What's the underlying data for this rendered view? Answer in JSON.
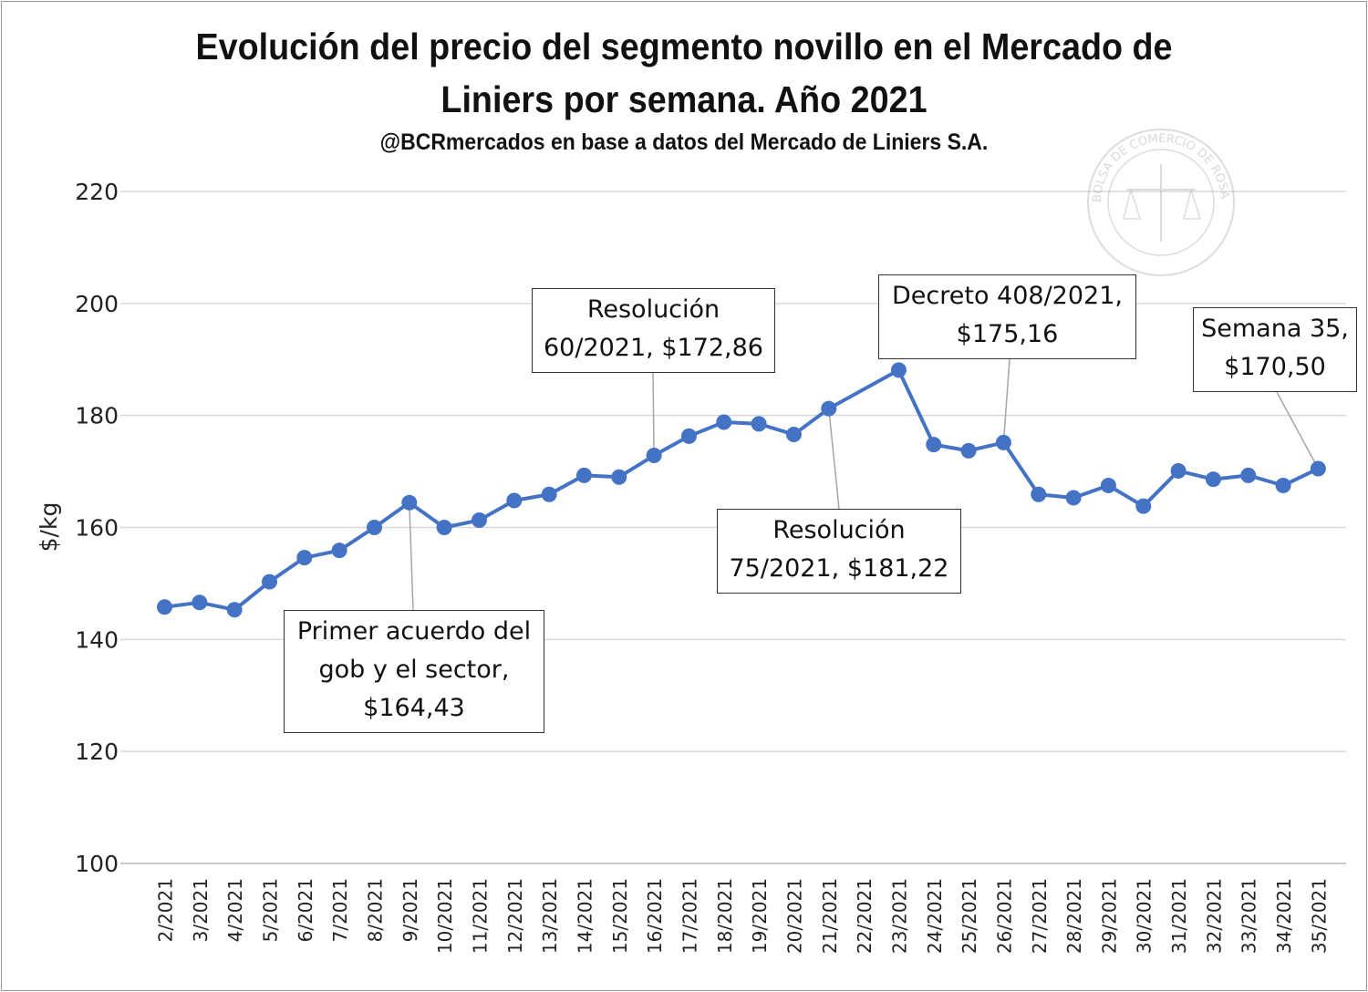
{
  "title_line1": "Evolución del precio del segmento novillo en el Mercado de",
  "title_line2": "Liniers por semana. Año 2021",
  "subtitle": "@BCRmercados  en base a datos del Mercado de Liniers S.A.",
  "watermark": "BOLSA DE COMERCIO DE ROSARIO",
  "chart_data": {
    "type": "line",
    "title": "Evolución del precio del segmento novillo en el Mercado de Liniers por semana. Año 2021",
    "subtitle": "@BCRmercados  en base a datos del Mercado de Liniers S.A.",
    "ylabel": "$/kg",
    "xlabel": "",
    "ylim": [
      100,
      220
    ],
    "yticks": [
      100,
      120,
      140,
      160,
      180,
      200,
      220
    ],
    "grid": true,
    "line_color": "#4472C4",
    "categories": [
      "2/2021",
      "3/2021",
      "4/2021",
      "5/2021",
      "6/2021",
      "7/2021",
      "8/2021",
      "9/2021",
      "10/2021",
      "11/2021",
      "12/2021",
      "13/2021",
      "14/2021",
      "15/2021",
      "16/2021",
      "17/2021",
      "18/2021",
      "19/2021",
      "20/2021",
      "21/2021",
      "22/2021",
      "23/2021",
      "24/2021",
      "25/2021",
      "26/2021",
      "27/2021",
      "28/2021",
      "29/2021",
      "30/2021",
      "31/2021",
      "32/2021",
      "33/2021",
      "34/2021",
      "35/2021"
    ],
    "values": [
      145.8,
      146.6,
      145.3,
      150.3,
      154.6,
      155.9,
      160.0,
      164.43,
      160.0,
      161.3,
      164.8,
      165.9,
      169.3,
      169.0,
      172.86,
      176.3,
      178.8,
      178.5,
      176.6,
      181.22,
      null,
      188.1,
      174.8,
      173.7,
      175.16,
      165.9,
      165.3,
      167.5,
      163.8,
      170.1,
      168.6,
      169.3,
      167.5,
      170.5
    ],
    "annotations": [
      {
        "text": "Primer acuerdo del\ngob y el sector,\n$164,43",
        "category": "9/2021",
        "value": 164.43
      },
      {
        "text": "Resolución\n60/2021, $172,86",
        "category": "16/2021",
        "value": 172.86
      },
      {
        "text": "Resolución\n75/2021, $181,22",
        "category": "21/2021",
        "value": 181.22
      },
      {
        "text": "Decreto 408/2021,\n$175,16",
        "category": "26/2021",
        "value": 175.16
      },
      {
        "text": "Semana 35,\n$170,50",
        "category": "35/2021",
        "value": 170.5
      }
    ]
  }
}
